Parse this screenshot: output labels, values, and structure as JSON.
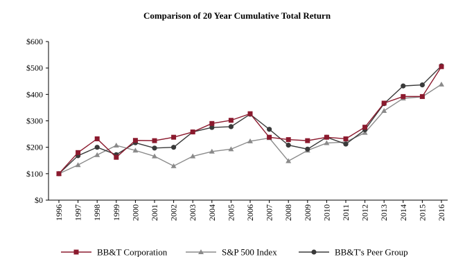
{
  "chart_data": {
    "type": "line",
    "title": "Comparison of 20 Year Cumulative Total Return",
    "xlabel": "",
    "ylabel": "",
    "ylim": [
      0,
      600
    ],
    "yticks": [
      0,
      100,
      200,
      300,
      400,
      500,
      600
    ],
    "ytick_labels": [
      "$0",
      "$100",
      "$200",
      "$300",
      "$400",
      "$500",
      "$600"
    ],
    "categories": [
      "1996",
      "1997",
      "1998",
      "1999",
      "2000",
      "2001",
      "2002",
      "2003",
      "2004",
      "2005",
      "2006",
      "2007",
      "2008",
      "2009",
      "2010",
      "2011",
      "2012",
      "2013",
      "2014",
      "2015",
      "2016"
    ],
    "grid": false,
    "legend_position": "bottom",
    "series": [
      {
        "name": "BB&T Corporation",
        "color": "#8b1a2e",
        "marker": "square",
        "values": [
          100,
          180,
          232,
          162,
          226,
          225,
          238,
          258,
          290,
          302,
          327,
          238,
          229,
          225,
          238,
          232,
          276,
          367,
          392,
          392,
          505
        ]
      },
      {
        "name": "S&P 500 Index",
        "color": "#8a8a8a",
        "marker": "triangle",
        "values": [
          100,
          133,
          171,
          207,
          188,
          166,
          129,
          166,
          184,
          193,
          223,
          235,
          148,
          188,
          216,
          220,
          255,
          338,
          385,
          391,
          438
        ]
      },
      {
        "name": "BB&T's Peer Group",
        "color": "#3a3a3a",
        "marker": "circle",
        "values": [
          100,
          168,
          200,
          172,
          217,
          197,
          200,
          258,
          275,
          278,
          325,
          268,
          208,
          193,
          238,
          212,
          266,
          365,
          432,
          436,
          508
        ]
      }
    ]
  }
}
